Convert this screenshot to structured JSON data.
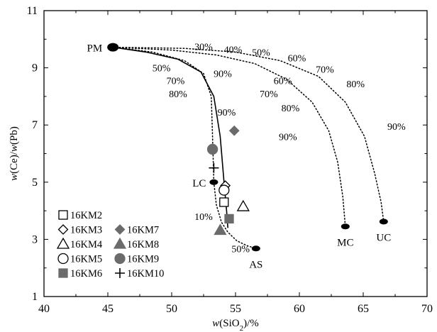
{
  "chart_data": {
    "type": "scatter",
    "xlabel": "w(SiO₂)/%",
    "ylabel": "w(Ce)/w(Pb)",
    "xlim": [
      40,
      70
    ],
    "ylim": [
      1,
      11
    ],
    "xticks": [
      40,
      45,
      50,
      55,
      60,
      65,
      70
    ],
    "yticks": [
      1,
      3,
      5,
      7,
      9,
      11
    ],
    "grid": false,
    "legend_position": "bottom-left",
    "reservoirs": [
      {
        "name": "PM",
        "x": 45.4,
        "y": 9.72
      },
      {
        "name": "LC",
        "x": 53.3,
        "y": 5.0
      },
      {
        "name": "AS",
        "x": 56.6,
        "y": 2.68
      },
      {
        "name": "MC",
        "x": 63.6,
        "y": 3.45
      },
      {
        "name": "UC",
        "x": 66.6,
        "y": 3.62
      }
    ],
    "mixing_curves": [
      {
        "from": "PM",
        "to": "AS",
        "style": "solid",
        "points": [
          [
            45.4,
            9.72
          ],
          [
            48,
            9.55
          ],
          [
            50.5,
            9.3
          ],
          [
            52.3,
            8.85
          ],
          [
            53.3,
            8.0
          ],
          [
            53.8,
            6.6
          ],
          [
            54.1,
            5.0
          ],
          [
            54.3,
            4.0
          ],
          [
            54.4,
            3.4
          ]
        ]
      },
      {
        "from": "LC",
        "to": "AS",
        "style": "dotted",
        "points": [
          [
            53.3,
            5.0
          ],
          [
            53.5,
            4.2
          ],
          [
            53.9,
            3.6
          ],
          [
            54.4,
            3.25
          ],
          [
            55.1,
            2.95
          ],
          [
            55.9,
            2.78
          ],
          [
            56.6,
            2.68
          ]
        ]
      },
      {
        "from": "PM",
        "to": "LC",
        "style": "dotted",
        "points": [
          [
            45.4,
            9.72
          ],
          [
            48.5,
            9.55
          ],
          [
            51,
            9.25
          ],
          [
            52.5,
            8.8
          ],
          [
            53.1,
            8.0
          ],
          [
            53.2,
            6.6
          ],
          [
            53.3,
            5.0
          ]
        ]
      },
      {
        "from": "PM",
        "to": "MC",
        "style": "dotted",
        "points": [
          [
            45.4,
            9.72
          ],
          [
            50,
            9.62
          ],
          [
            53.5,
            9.45
          ],
          [
            56.5,
            9.15
          ],
          [
            59,
            8.6
          ],
          [
            61,
            7.8
          ],
          [
            62.3,
            6.8
          ],
          [
            63,
            5.7
          ],
          [
            63.4,
            4.5
          ],
          [
            63.6,
            3.45
          ]
        ]
      },
      {
        "from": "PM",
        "to": "UC",
        "style": "dotted",
        "points": [
          [
            45.4,
            9.72
          ],
          [
            51,
            9.68
          ],
          [
            55,
            9.55
          ],
          [
            58.5,
            9.25
          ],
          [
            61.5,
            8.7
          ],
          [
            63.6,
            7.8
          ],
          [
            65.1,
            6.6
          ],
          [
            65.9,
            5.3
          ],
          [
            66.4,
            4.3
          ],
          [
            66.6,
            3.62
          ]
        ]
      }
    ],
    "mixing_labels": [
      {
        "text": "30%",
        "x": 52.5,
        "y": 9.75
      },
      {
        "text": "40%",
        "x": 54.8,
        "y": 9.65
      },
      {
        "text": "50%",
        "x": 57.0,
        "y": 9.55
      },
      {
        "text": "60%",
        "x": 59.8,
        "y": 9.35
      },
      {
        "text": "70%",
        "x": 62.0,
        "y": 8.95
      },
      {
        "text": "80%",
        "x": 64.4,
        "y": 8.45
      },
      {
        "text": "90%",
        "x": 67.6,
        "y": 6.95
      },
      {
        "text": "50%",
        "x": 49.2,
        "y": 9.0
      },
      {
        "text": "90%",
        "x": 54.0,
        "y": 8.8
      },
      {
        "text": "60%",
        "x": 58.7,
        "y": 8.55
      },
      {
        "text": "70%",
        "x": 50.3,
        "y": 8.55
      },
      {
        "text": "70%",
        "x": 57.6,
        "y": 8.1
      },
      {
        "text": "80%",
        "x": 50.5,
        "y": 8.1
      },
      {
        "text": "80%",
        "x": 59.3,
        "y": 7.6
      },
      {
        "text": "90%",
        "x": 54.3,
        "y": 7.45
      },
      {
        "text": "90%",
        "x": 59.1,
        "y": 6.6
      },
      {
        "text": "10%",
        "x": 52.5,
        "y": 3.8
      },
      {
        "text": "50%",
        "x": 55.4,
        "y": 2.68
      }
    ],
    "series": [
      {
        "name": "16KM2",
        "marker": "square-open",
        "x": [
          54.1
        ],
        "y": [
          4.3
        ]
      },
      {
        "name": "16KM3",
        "marker": "diamond-open",
        "x": [
          54.2
        ],
        "y": [
          4.88
        ]
      },
      {
        "name": "16KM4",
        "marker": "triangle-open",
        "x": [
          55.6
        ],
        "y": [
          4.15
        ]
      },
      {
        "name": "16KM5",
        "marker": "circle-open",
        "x": [
          54.1
        ],
        "y": [
          4.72
        ]
      },
      {
        "name": "16KM6",
        "marker": "square-filled",
        "x": [
          54.5
        ],
        "y": [
          3.72
        ]
      },
      {
        "name": "16KM7",
        "marker": "diamond-filled",
        "x": [
          54.9
        ],
        "y": [
          6.8
        ]
      },
      {
        "name": "16KM8",
        "marker": "triangle-filled",
        "x": [
          53.8
        ],
        "y": [
          3.32
        ]
      },
      {
        "name": "16KM9",
        "marker": "circle-filled",
        "x": [
          53.2
        ],
        "y": [
          6.15
        ]
      },
      {
        "name": "16KM10",
        "marker": "plus",
        "x": [
          53.3
        ],
        "y": [
          5.5
        ]
      }
    ],
    "legend_rows": [
      [
        "16KM2"
      ],
      [
        "16KM3",
        "16KM7"
      ],
      [
        "16KM4",
        "16KM8"
      ],
      [
        "16KM5",
        "16KM9"
      ],
      [
        "16KM6",
        "16KM10"
      ]
    ],
    "colors": {
      "filled_marker": "#6b6b6b",
      "line": "#000000",
      "background": "#ffffff"
    }
  }
}
